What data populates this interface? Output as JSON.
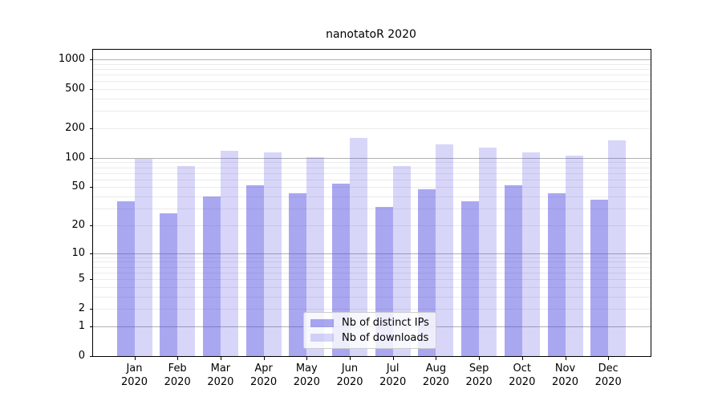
{
  "title": "nanotatoR 2020",
  "chart_data": {
    "type": "bar",
    "title": "nanotatoR 2020",
    "categories": [
      "Jan",
      "Feb",
      "Mar",
      "Apr",
      "May",
      "Jun",
      "Jul",
      "Aug",
      "Sep",
      "Oct",
      "Nov",
      "Dec"
    ],
    "year_label": "2020",
    "series": [
      {
        "name": "Nb of distinct IPs",
        "values": [
          36,
          27,
          40,
          52,
          43,
          54,
          31,
          48,
          36,
          52,
          43,
          37
        ]
      },
      {
        "name": "Nb of downloads",
        "values": [
          97,
          83,
          118,
          113,
          101,
          160,
          83,
          137,
          128,
          113,
          106,
          151
        ]
      }
    ],
    "y_ticks": [
      0,
      1,
      2,
      5,
      10,
      20,
      50,
      100,
      200,
      500,
      1000
    ],
    "y_scale": "log10(value+1)",
    "ylim": [
      0,
      1250
    ],
    "grid": "on",
    "legend_position": "lower center"
  },
  "legend": {
    "items": [
      {
        "label": "Nb of distinct IPs"
      },
      {
        "label": "Nb of downloads"
      }
    ]
  },
  "colors": {
    "bar_base": "#4A44E2",
    "bar_distinct_ips": "rgba(74,68,226,0.47)",
    "bar_downloads": "rgba(74,68,226,0.22)",
    "grid_major": "#b1b1b1",
    "grid_minor": "#ebebeb",
    "axis_border": "#000000",
    "legend_border": "#cccccc",
    "text": "#000000"
  }
}
